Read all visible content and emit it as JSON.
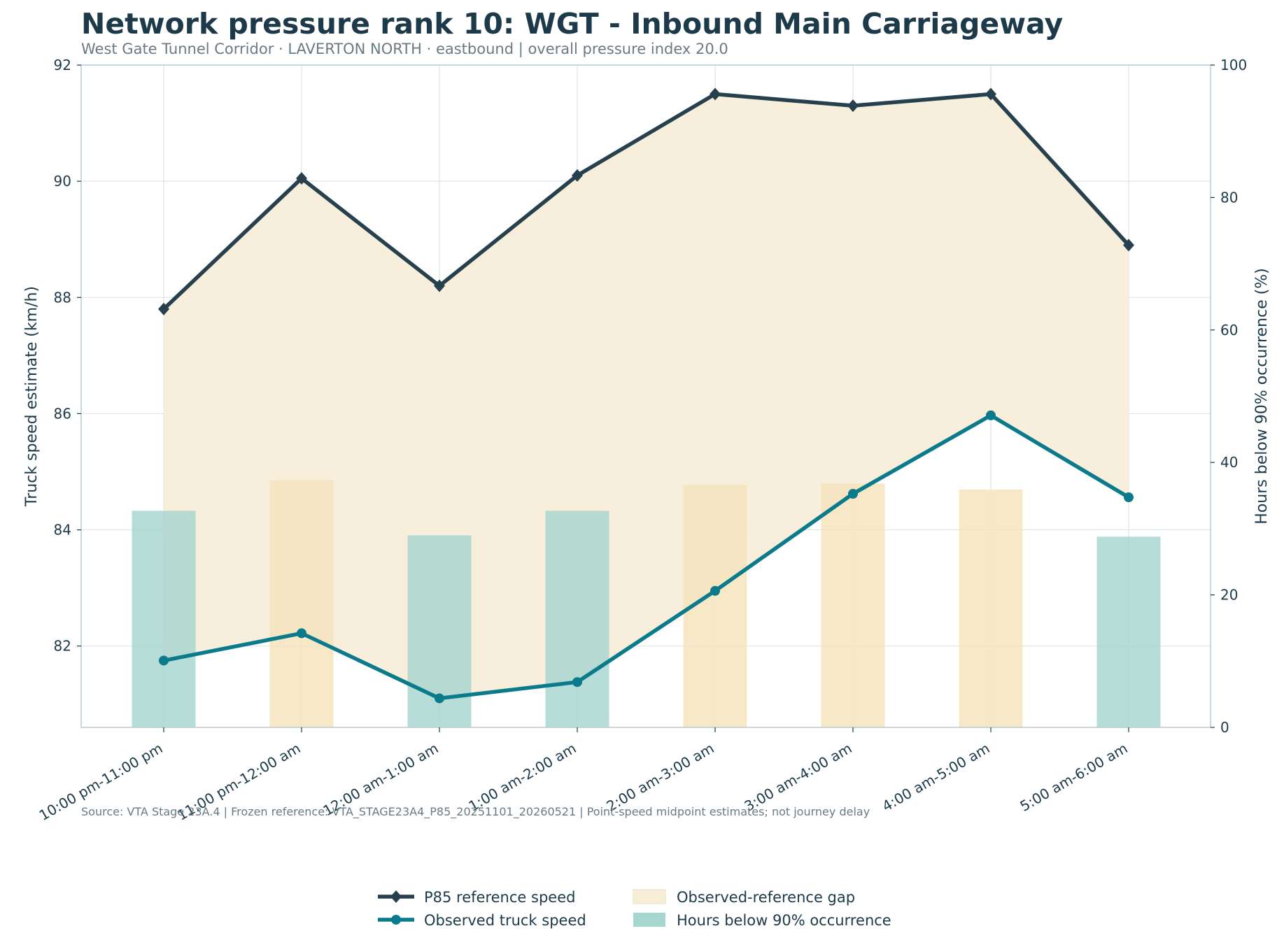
{
  "header": {
    "title": "Network pressure rank 10: WGT - Inbound Main Carriageway",
    "subtitle": "West Gate Tunnel Corridor · LAVERTON NORTH · eastbound | overall pressure index 20.0"
  },
  "footer": {
    "source": "Source: VTA Stage 23A.4 | Frozen reference: VTA_STAGE23A4_P85_20251101_20260521 | Point-speed midpoint estimates; not journey delay"
  },
  "colors": {
    "reference": "#26404d",
    "observed": "#0b7b8c",
    "gap_fill": "#f7eed9",
    "bar_teal": "#a7d5d0",
    "bar_sand": "#f5e3bc",
    "grid": "#dde6ea",
    "axis": "#b9ccd4"
  },
  "chart_data": {
    "type": "line",
    "categories": [
      "10:00 pm-11:00 pm",
      "11:00 pm-12:00 am",
      "12:00 am-1:00 am",
      "1:00 am-2:00 am",
      "2:00 am-3:00 am",
      "3:00 am-4:00 am",
      "4:00 am-5:00 am",
      "5:00 am-6:00 am"
    ],
    "series": [
      {
        "name": "P85 reference speed",
        "axis": "left",
        "marker": "diamond",
        "values": [
          87.8,
          90.05,
          88.2,
          90.1,
          91.5,
          91.3,
          91.5,
          88.9
        ]
      },
      {
        "name": "Observed truck speed",
        "axis": "left",
        "marker": "circle",
        "values": [
          81.75,
          82.22,
          81.1,
          81.38,
          82.95,
          84.62,
          85.97,
          84.56
        ]
      },
      {
        "name": "Hours below 90% occurrence",
        "axis": "right",
        "type": "bar",
        "values": [
          32.7,
          37.3,
          29.0,
          32.7,
          36.6,
          36.8,
          35.9,
          28.8
        ],
        "bar_colors": [
          "teal",
          "sand",
          "teal",
          "teal",
          "sand",
          "sand",
          "sand",
          "teal"
        ]
      }
    ],
    "shaded_band": {
      "name": "Observed-reference gap",
      "between": [
        "Observed truck speed",
        "P85 reference speed"
      ]
    },
    "ylabel": "Truck speed estimate (km/h)",
    "y2label": "Hours below 90% occurrence (%)",
    "ylim": [
      80.6,
      92
    ],
    "y_ticks": [
      82,
      84,
      86,
      88,
      90,
      92
    ],
    "y2lim": [
      0,
      100
    ],
    "y2_ticks": [
      0,
      20,
      40,
      60,
      80,
      100
    ],
    "grid": true,
    "legend_position": "bottom-center"
  }
}
